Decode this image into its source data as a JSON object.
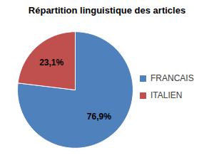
{
  "chart_data": {
    "type": "pie",
    "title": "Répartition linguistique des articles",
    "categories": [
      "FRANCAIS",
      "ITALIEN"
    ],
    "values": [
      76.9,
      23.1
    ],
    "value_labels": [
      "76,9%",
      "23,1%"
    ],
    "colors": [
      "#4F81BD",
      "#C0504D"
    ],
    "data_labels": true,
    "legend": "right"
  }
}
